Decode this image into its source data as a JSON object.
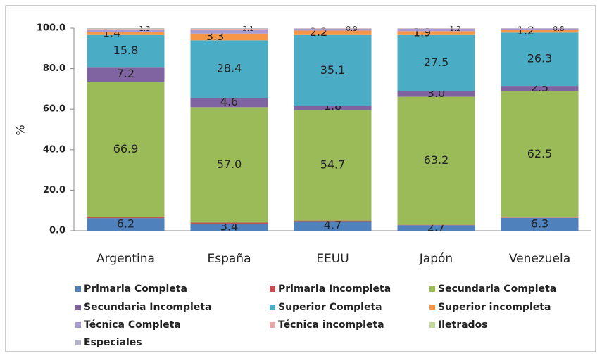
{
  "chart_data": {
    "type": "stacked_bar",
    "ylabel": "%",
    "categories": [
      "Argentina",
      "España",
      "EEUU",
      "Japón",
      "Venezuela"
    ],
    "ylim": [
      0,
      100
    ],
    "yticks": [
      {
        "value": 0,
        "label": "0.0"
      },
      {
        "value": 20,
        "label": "20.0"
      },
      {
        "value": 40,
        "label": "40.0"
      },
      {
        "value": 60,
        "label": "60.0"
      },
      {
        "value": 80,
        "label": "80.0"
      },
      {
        "value": 100,
        "label": "100.0"
      }
    ],
    "series": [
      {
        "name": "Primaria Completa",
        "color": "#4f81bd",
        "values": [
          6.2,
          3.4,
          4.7,
          2.7,
          6.3
        ],
        "value_labels": [
          "6.2",
          "3.4",
          "4.7",
          "2.7",
          "6.3"
        ]
      },
      {
        "name": "Primaria Incompleta",
        "color": "#c0504d",
        "values": [
          0.5,
          0.6,
          0.3,
          0.2,
          0.2
        ]
      },
      {
        "name": "Secundaria Completa",
        "color": "#9bbb59",
        "values": [
          66.9,
          57.0,
          54.7,
          63.2,
          62.5
        ],
        "value_labels": [
          "66.9",
          "57.0",
          "54.7",
          "63.2",
          "62.5"
        ]
      },
      {
        "name": "Secundaria Incompleta",
        "color": "#8064a2",
        "values": [
          7.2,
          4.6,
          1.8,
          3.0,
          2.5
        ],
        "value_labels": [
          "7.2",
          "4.6",
          "1.8",
          "3.0",
          "2.5"
        ]
      },
      {
        "name": "Superior Completa",
        "color": "#4bacc6",
        "values": [
          15.8,
          28.4,
          35.1,
          27.5,
          26.3
        ],
        "value_labels": [
          "15.8",
          "28.4",
          "35.1",
          "27.5",
          "26.3"
        ]
      },
      {
        "name": "Superior incompleta",
        "color": "#f79646",
        "values": [
          1.4,
          3.3,
          2.2,
          1.9,
          1.2
        ],
        "value_labels": [
          "1.4",
          "3.3",
          "2.2",
          "1.9",
          "1.2"
        ]
      },
      {
        "name": "Técnica Completa",
        "color": "#a99bd1",
        "values": [
          1.3,
          2.1,
          0.9,
          1.2,
          0.8
        ],
        "value_labels": [
          "1.3",
          "2.1",
          "0.9",
          "1.2",
          "0.8"
        ]
      },
      {
        "name": "Técnica incompleta",
        "color": "#e6a7a6",
        "values": [
          0.3,
          0.3,
          0.1,
          0.1,
          0.1
        ]
      },
      {
        "name": "Iletrados",
        "color": "#c3d69b",
        "values": [
          0.2,
          0.1,
          0.1,
          0.1,
          0.0
        ]
      },
      {
        "name": "Especiales",
        "color": "#b2b2c8",
        "values": [
          0.2,
          0.2,
          0.1,
          0.1,
          0.1
        ]
      }
    ]
  }
}
